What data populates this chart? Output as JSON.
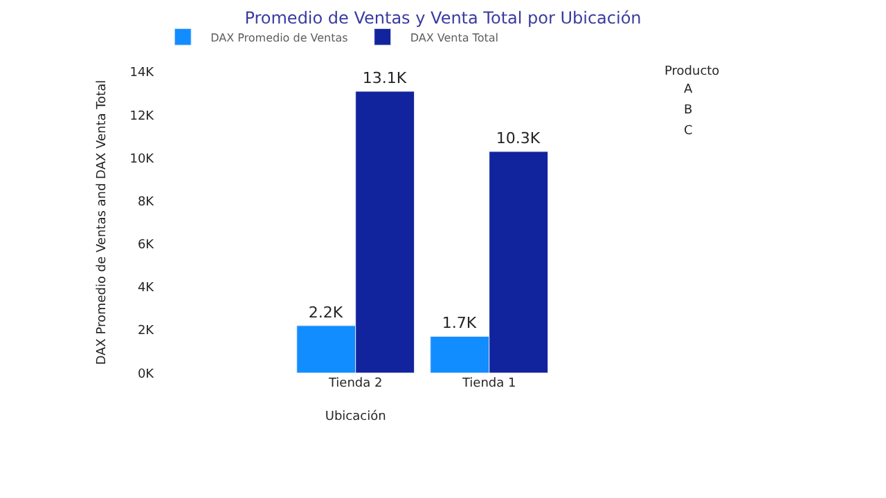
{
  "chart_data": [
    {
      "type": "bar",
      "title": "Promedio de Ventas y Venta Total por Ubicación",
      "xlabel": "Ubicación",
      "ylabel": "DAX Promedio de Ventas and DAX Venta Total",
      "categories": [
        null,
        "Tienda 2",
        "Tienda 1"
      ],
      "series": [
        {
          "name": "DAX Promedio de Ventas",
          "color": "#118dff",
          "values": [
            null,
            2200,
            1700
          ],
          "value_labels": [
            null,
            "2.2K",
            "1.7K"
          ]
        },
        {
          "name": "DAX Venta Total",
          "color": "#12239e",
          "values": [
            null,
            13100,
            10300
          ],
          "value_labels": [
            null,
            "13.1K",
            "10.3K"
          ]
        }
      ],
      "ylim": [
        0,
        14000
      ],
      "yticks": [
        {
          "value": 0,
          "label": "0K"
        },
        {
          "value": 2000,
          "label": "2K"
        },
        {
          "value": 4000,
          "label": "4K"
        },
        {
          "value": 6000,
          "label": "6K"
        },
        {
          "value": 8000,
          "label": "8K"
        },
        {
          "value": 10000,
          "label": "10K"
        },
        {
          "value": 12000,
          "label": "12K"
        },
        {
          "value": 14000,
          "label": "14K"
        }
      ],
      "legend": "top left"
    },
    {
      "type": "other",
      "title": "Producto",
      "annotations": [
        "A",
        "B",
        "C"
      ]
    }
  ]
}
